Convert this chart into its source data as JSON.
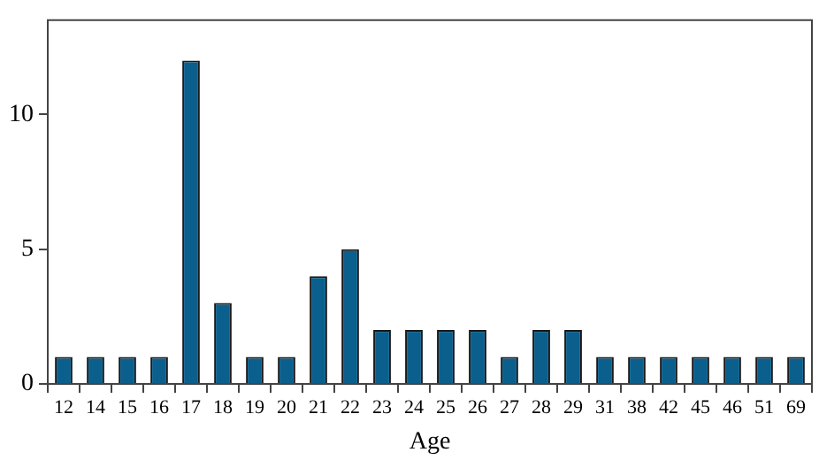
{
  "chart_data": {
    "type": "bar",
    "xlabel": "Age",
    "categories": [
      "12",
      "14",
      "15",
      "16",
      "17",
      "18",
      "19",
      "20",
      "21",
      "22",
      "23",
      "24",
      "25",
      "26",
      "27",
      "28",
      "29",
      "31",
      "38",
      "42",
      "45",
      "46",
      "51",
      "69"
    ],
    "values": [
      1,
      1,
      1,
      1,
      12,
      3,
      1,
      1,
      4,
      5,
      2,
      2,
      2,
      2,
      1,
      2,
      2,
      1,
      1,
      1,
      1,
      1,
      1,
      1
    ],
    "color": "#0b5f8c",
    "ylim": [
      0,
      13.5
    ],
    "yticks": [
      0,
      5,
      10
    ],
    "grid": false,
    "legend": false
  }
}
